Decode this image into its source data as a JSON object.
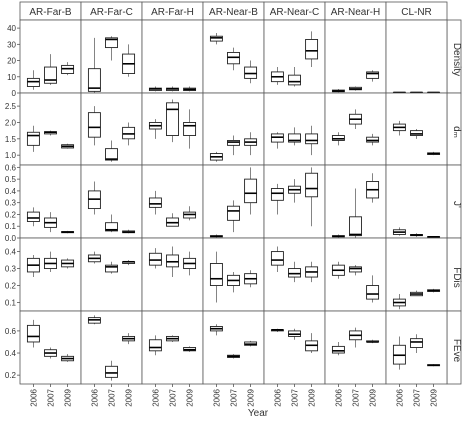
{
  "chart_data": {
    "type": "boxplot",
    "xlabel": "Year",
    "x_categories": [
      "2006",
      "2007",
      "2009"
    ],
    "columns": [
      "AR-Far-B",
      "AR-Far-C",
      "AR-Far-H",
      "AR-Near-B",
      "AR-Near-C",
      "AR-Near-H",
      "CL-NR"
    ],
    "rows": [
      {
        "label": "Density",
        "ylim": [
          0,
          45
        ],
        "ticks": [
          0,
          10,
          20,
          30,
          40
        ],
        "tick_labels": [
          "0",
          "10",
          "20",
          "30",
          "40"
        ],
        "panels": [
          [
            [
              2,
              4,
              7,
              9,
              14
            ],
            [
              5,
              6,
              8,
              16,
              24
            ],
            [
              11,
              12,
              15,
              17,
              19
            ]
          ],
          [
            [
              0,
              1,
              3,
              15,
              34
            ],
            [
              20,
              28,
              33,
              34,
              35
            ],
            [
              10,
              12,
              18,
              24,
              30
            ]
          ],
          [
            [
              1,
              1.5,
              2.5,
              3,
              4
            ],
            [
              1,
              1.5,
              2.5,
              3,
              4
            ],
            [
              1,
              1.5,
              2.2,
              3,
              4
            ]
          ],
          [
            [
              30,
              32,
              34,
              35,
              37
            ],
            [
              14,
              18,
              22,
              25,
              28
            ],
            [
              6,
              9,
              12,
              16,
              20
            ]
          ],
          [
            [
              5,
              7,
              10,
              13,
              16
            ],
            [
              4,
              5,
              7,
              11,
              16
            ],
            [
              16,
              21,
              26,
              33,
              38
            ]
          ],
          [
            [
              0.5,
              0.8,
              1.2,
              1.8,
              2.5
            ],
            [
              1.5,
              2,
              2.5,
              3.5,
              4
            ],
            [
              7,
              9,
              12,
              13,
              14
            ]
          ],
          [
            [
              0,
              0.2,
              0.3,
              0.4,
              0.5
            ],
            [
              0,
              0.2,
              0.3,
              0.4,
              0.5
            ],
            [
              0,
              0.2,
              0.3,
              0.4,
              0.5
            ]
          ]
        ]
      },
      {
        "label": "dₘ",
        "ylim": [
          0.7,
          2.9
        ],
        "ticks": [
          1.0,
          1.5,
          2.0,
          2.5
        ],
        "tick_labels": [
          "1.0",
          "1.5",
          "2.0",
          "2.5"
        ],
        "panels": [
          [
            [
              1.1,
              1.3,
              1.6,
              1.7,
              1.9
            ],
            [
              1.6,
              1.65,
              1.7,
              1.72,
              1.75
            ],
            [
              1.2,
              1.22,
              1.27,
              1.32,
              1.35
            ]
          ],
          [
            [
              1.3,
              1.55,
              1.85,
              2.3,
              2.5
            ],
            [
              0.8,
              0.85,
              0.88,
              1.2,
              1.45
            ],
            [
              1.3,
              1.5,
              1.65,
              1.85,
              2.0
            ]
          ],
          [
            [
              1.5,
              1.8,
              1.9,
              2.0,
              2.1
            ],
            [
              1.4,
              1.6,
              2.4,
              2.6,
              2.7
            ],
            [
              1.2,
              1.6,
              1.9,
              2.0,
              2.4
            ]
          ],
          [
            [
              0.8,
              0.85,
              0.95,
              1.05,
              1.1
            ],
            [
              1.0,
              1.3,
              1.4,
              1.45,
              1.6
            ],
            [
              1.0,
              1.3,
              1.4,
              1.5,
              1.7
            ]
          ],
          [
            [
              1.2,
              1.4,
              1.55,
              1.65,
              1.7
            ],
            [
              1.3,
              1.4,
              1.45,
              1.65,
              1.85
            ],
            [
              1.0,
              1.35,
              1.45,
              1.65,
              1.9
            ]
          ],
          [
            [
              1.3,
              1.45,
              1.5,
              1.6,
              1.7
            ],
            [
              1.8,
              1.95,
              2.1,
              2.25,
              2.4
            ],
            [
              1.3,
              1.4,
              1.45,
              1.55,
              1.65
            ]
          ],
          [
            [
              1.6,
              1.75,
              1.85,
              1.95,
              2.05
            ],
            [
              1.5,
              1.6,
              1.65,
              1.75,
              1.8
            ],
            [
              1.0,
              1.02,
              1.05,
              1.07,
              1.1
            ]
          ]
        ]
      },
      {
        "label": "J'",
        "ylim": [
          0,
          0.62
        ],
        "ticks": [
          0.0,
          0.1,
          0.2,
          0.3,
          0.4,
          0.5,
          0.6
        ],
        "tick_labels": [
          "0.0",
          "0.1",
          "0.2",
          "0.3",
          "0.4",
          "0.5",
          "0.6"
        ],
        "panels": [
          [
            [
              0.1,
              0.14,
              0.17,
              0.22,
              0.26
            ],
            [
              0.05,
              0.09,
              0.13,
              0.17,
              0.22
            ],
            [
              0.04,
              0.045,
              0.05,
              0.055,
              0.06
            ]
          ],
          [
            [
              0.2,
              0.25,
              0.33,
              0.4,
              0.48
            ],
            [
              0.05,
              0.06,
              0.07,
              0.13,
              0.2
            ],
            [
              0.04,
              0.045,
              0.05,
              0.06,
              0.07
            ]
          ],
          [
            [
              0.2,
              0.26,
              0.29,
              0.34,
              0.4
            ],
            [
              0.1,
              0.1,
              0.13,
              0.17,
              0.21
            ],
            [
              0.15,
              0.17,
              0.2,
              0.22,
              0.27
            ]
          ],
          [
            [
              0,
              0.01,
              0.015,
              0.02,
              0.03
            ],
            [
              0.05,
              0.15,
              0.23,
              0.27,
              0.32
            ],
            [
              0.2,
              0.3,
              0.38,
              0.5,
              0.6
            ]
          ],
          [
            [
              0.2,
              0.32,
              0.38,
              0.42,
              0.46
            ],
            [
              0.3,
              0.38,
              0.41,
              0.44,
              0.5
            ],
            [
              0.1,
              0.35,
              0.42,
              0.55,
              0.6
            ]
          ],
          [
            [
              0,
              0.01,
              0.015,
              0.02,
              0.03
            ],
            [
              0,
              0.02,
              0.03,
              0.18,
              0.42
            ],
            [
              0.3,
              0.34,
              0.41,
              0.48,
              0.55
            ]
          ],
          [
            [
              0.02,
              0.03,
              0.05,
              0.07,
              0.09
            ],
            [
              0.01,
              0.02,
              0.025,
              0.03,
              0.04
            ],
            [
              0,
              0.005,
              0.01,
              0.012,
              0.015
            ]
          ]
        ]
      },
      {
        "label": "FDis",
        "ylim": [
          0.05,
          0.48
        ],
        "ticks": [
          0.1,
          0.2,
          0.3,
          0.4
        ],
        "tick_labels": [
          "0.1",
          "0.2",
          "0.3",
          "0.4"
        ],
        "panels": [
          [
            [
              0.25,
              0.28,
              0.32,
              0.36,
              0.38
            ],
            [
              0.28,
              0.3,
              0.33,
              0.36,
              0.4
            ],
            [
              0.3,
              0.31,
              0.33,
              0.35,
              0.36
            ]
          ],
          [
            [
              0.33,
              0.34,
              0.36,
              0.38,
              0.4
            ],
            [
              0.27,
              0.28,
              0.31,
              0.32,
              0.34
            ],
            [
              0.32,
              0.33,
              0.34,
              0.34,
              0.35
            ]
          ],
          [
            [
              0.3,
              0.32,
              0.35,
              0.39,
              0.42
            ],
            [
              0.25,
              0.31,
              0.34,
              0.38,
              0.43
            ],
            [
              0.26,
              0.3,
              0.33,
              0.36,
              0.4
            ]
          ],
          [
            [
              0.1,
              0.2,
              0.24,
              0.33,
              0.4
            ],
            [
              0.16,
              0.2,
              0.23,
              0.26,
              0.28
            ],
            [
              0.19,
              0.21,
              0.24,
              0.27,
              0.29
            ]
          ],
          [
            [
              0.28,
              0.32,
              0.35,
              0.4,
              0.43
            ],
            [
              0.22,
              0.25,
              0.27,
              0.3,
              0.34
            ],
            [
              0.22,
              0.25,
              0.28,
              0.31,
              0.34
            ]
          ],
          [
            [
              0.24,
              0.26,
              0.29,
              0.32,
              0.34
            ],
            [
              0.26,
              0.28,
              0.3,
              0.31,
              0.32
            ],
            [
              0.1,
              0.12,
              0.15,
              0.2,
              0.26
            ]
          ],
          [
            [
              0.06,
              0.08,
              0.1,
              0.12,
              0.15
            ],
            [
              0.14,
              0.14,
              0.15,
              0.16,
              0.17
            ],
            [
              0.16,
              0.165,
              0.17,
              0.175,
              0.18
            ]
          ]
        ]
      },
      {
        "label": "FEve",
        "ylim": [
          0.12,
          0.78
        ],
        "ticks": [
          0.2,
          0.4,
          0.6
        ],
        "tick_labels": [
          "0.2",
          "0.4",
          "0.6"
        ],
        "panels": [
          [
            [
              0.45,
              0.5,
              0.55,
              0.65,
              0.7
            ],
            [
              0.35,
              0.37,
              0.4,
              0.43,
              0.45
            ],
            [
              0.32,
              0.33,
              0.35,
              0.37,
              0.39
            ]
          ],
          [
            [
              0.66,
              0.67,
              0.7,
              0.72,
              0.74
            ],
            [
              0.15,
              0.18,
              0.22,
              0.28,
              0.33
            ],
            [
              0.48,
              0.51,
              0.53,
              0.55,
              0.58
            ]
          ],
          [
            [
              0.38,
              0.42,
              0.45,
              0.52,
              0.56
            ],
            [
              0.5,
              0.51,
              0.53,
              0.55,
              0.56
            ],
            [
              0.41,
              0.42,
              0.43,
              0.45,
              0.46
            ]
          ],
          [
            [
              0.56,
              0.6,
              0.62,
              0.64,
              0.66
            ],
            [
              0.35,
              0.36,
              0.37,
              0.38,
              0.39
            ],
            [
              0.46,
              0.47,
              0.48,
              0.5,
              0.51
            ]
          ],
          [
            [
              0.59,
              0.6,
              0.61,
              0.61,
              0.62
            ],
            [
              0.52,
              0.55,
              0.57,
              0.6,
              0.62
            ],
            [
              0.4,
              0.42,
              0.47,
              0.51,
              0.58
            ]
          ],
          [
            [
              0.38,
              0.4,
              0.42,
              0.46,
              0.5
            ],
            [
              0.45,
              0.52,
              0.56,
              0.6,
              0.63
            ],
            [
              0.49,
              0.5,
              0.5,
              0.51,
              0.52
            ]
          ],
          [
            [
              0.25,
              0.3,
              0.38,
              0.47,
              0.55
            ],
            [
              0.4,
              0.45,
              0.5,
              0.53,
              0.57
            ],
            [
              0.28,
              0.285,
              0.29,
              0.295,
              0.3
            ]
          ]
        ]
      }
    ]
  }
}
